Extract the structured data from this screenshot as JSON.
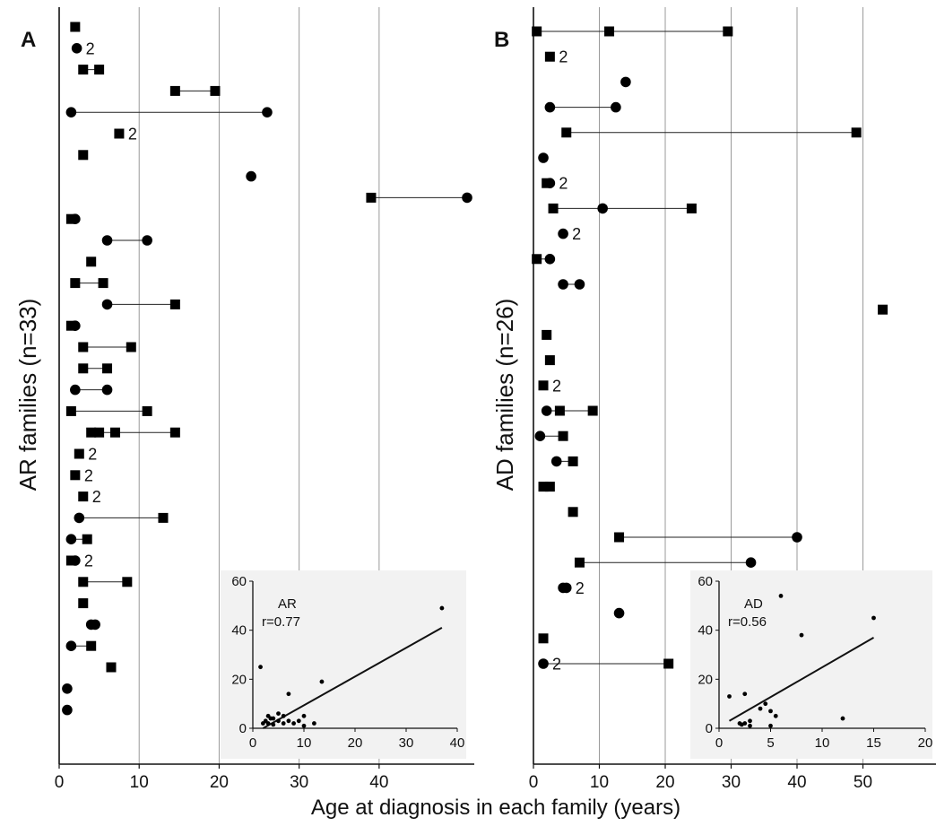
{
  "figure": {
    "xlabel": "Age at diagnosis in each family (years)"
  },
  "chart_data": [
    {
      "panel": "A",
      "type": "scatter",
      "ylabel": "AR families (n=33)",
      "xticks": [
        0,
        10,
        20,
        30,
        40
      ],
      "xlim": [
        0,
        51
      ],
      "grid_x": [
        10,
        20,
        30,
        40
      ],
      "families": [
        {
          "points": [
            {
              "s": "sq",
              "x": 2
            }
          ]
        },
        {
          "points": [
            {
              "s": "ci",
              "x": 2.2
            }
          ],
          "count": "2"
        },
        {
          "points": [
            {
              "s": "sq",
              "x": 3
            },
            {
              "s": "sq",
              "x": 5
            }
          ]
        },
        {
          "points": [
            {
              "s": "sq",
              "x": 14.5
            },
            {
              "s": "sq",
              "x": 19.5
            }
          ]
        },
        {
          "points": [
            {
              "s": "ci",
              "x": 1.5
            },
            {
              "s": "ci",
              "x": 26
            }
          ]
        },
        {
          "points": [
            {
              "s": "sq",
              "x": 7.5
            }
          ],
          "count": "2"
        },
        {
          "points": [
            {
              "s": "sq",
              "x": 3
            }
          ]
        },
        {
          "points": [
            {
              "s": "ci",
              "x": 24
            }
          ]
        },
        {
          "points": [
            {
              "s": "sq",
              "x": 39
            },
            {
              "s": "ci",
              "x": 51
            }
          ]
        },
        {
          "points": [
            {
              "s": "sq",
              "x": 1.5
            },
            {
              "s": "ci",
              "x": 2
            }
          ]
        },
        {
          "points": [
            {
              "s": "ci",
              "x": 6
            },
            {
              "s": "ci",
              "x": 11
            }
          ]
        },
        {
          "points": [
            {
              "s": "sq",
              "x": 4
            }
          ]
        },
        {
          "points": [
            {
              "s": "sq",
              "x": 2
            },
            {
              "s": "sq",
              "x": 5.5
            }
          ]
        },
        {
          "points": [
            {
              "s": "ci",
              "x": 6
            },
            {
              "s": "sq",
              "x": 14.5
            }
          ]
        },
        {
          "points": [
            {
              "s": "sq",
              "x": 1.5
            },
            {
              "s": "ci",
              "x": 2
            }
          ]
        },
        {
          "points": [
            {
              "s": "sq",
              "x": 3
            },
            {
              "s": "sq",
              "x": 9
            }
          ]
        },
        {
          "points": [
            {
              "s": "sq",
              "x": 3
            },
            {
              "s": "sq",
              "x": 6
            }
          ]
        },
        {
          "points": [
            {
              "s": "ci",
              "x": 2
            },
            {
              "s": "ci",
              "x": 6
            }
          ]
        },
        {
          "points": [
            {
              "s": "sq",
              "x": 1.5
            },
            {
              "s": "sq",
              "x": 11
            }
          ]
        },
        {
          "points": [
            {
              "s": "sq",
              "x": 4
            },
            {
              "s": "sq",
              "x": 5
            },
            {
              "s": "sq",
              "x": 7
            },
            {
              "s": "sq",
              "x": 14.5
            }
          ]
        },
        {
          "points": [
            {
              "s": "sq",
              "x": 2.5
            }
          ],
          "count": "2"
        },
        {
          "points": [
            {
              "s": "sq",
              "x": 2
            }
          ],
          "count": "2"
        },
        {
          "points": [
            {
              "s": "sq",
              "x": 3
            }
          ],
          "count": "2"
        },
        {
          "points": [
            {
              "s": "ci",
              "x": 2.5
            },
            {
              "s": "sq",
              "x": 13
            }
          ]
        },
        {
          "points": [
            {
              "s": "ci",
              "x": 1.5
            },
            {
              "s": "sq",
              "x": 3.5
            }
          ]
        },
        {
          "points": [
            {
              "s": "sq",
              "x": 1.5
            },
            {
              "s": "ci",
              "x": 2
            }
          ],
          "count": "2"
        },
        {
          "points": [
            {
              "s": "sq",
              "x": 3
            },
            {
              "s": "sq",
              "x": 8.5
            }
          ]
        },
        {
          "points": [
            {
              "s": "sq",
              "x": 3
            }
          ]
        },
        {
          "points": [
            {
              "s": "ci",
              "x": 4
            },
            {
              "s": "ci",
              "x": 4.5
            }
          ]
        },
        {
          "points": [
            {
              "s": "ci",
              "x": 1.5
            },
            {
              "s": "sq",
              "x": 4
            }
          ]
        },
        {
          "points": [
            {
              "s": "sq",
              "x": 6.5
            }
          ]
        },
        {
          "points": [
            {
              "s": "ci",
              "x": 1
            }
          ]
        },
        {
          "points": [
            {
              "s": "ci",
              "x": 1
            }
          ]
        }
      ],
      "inset": {
        "label": "AR",
        "r_text": "r=0.77",
        "xticks": [
          0,
          10,
          20,
          30,
          40
        ],
        "yticks": [
          0,
          20,
          40,
          60
        ],
        "xlim": [
          0,
          40
        ],
        "ylim": [
          0,
          60
        ],
        "fit": [
          [
            2,
            0
          ],
          [
            37,
            41
          ]
        ],
        "points": [
          [
            1.5,
            25
          ],
          [
            37,
            49
          ],
          [
            13.5,
            19
          ],
          [
            7,
            14
          ],
          [
            2,
            2
          ],
          [
            2.5,
            3
          ],
          [
            3,
            5
          ],
          [
            3,
            2
          ],
          [
            4,
            1.5
          ],
          [
            4,
            4
          ],
          [
            5,
            6
          ],
          [
            5,
            3
          ],
          [
            6,
            2
          ],
          [
            6,
            5
          ],
          [
            7,
            3
          ],
          [
            8,
            2
          ],
          [
            9,
            3
          ],
          [
            10,
            5
          ],
          [
            10,
            1
          ],
          [
            12,
            2
          ],
          [
            3.5,
            4
          ]
        ]
      }
    },
    {
      "panel": "B",
      "type": "scatter",
      "ylabel": "AD families (n=26)",
      "xticks": [
        0,
        10,
        20,
        30,
        40,
        50
      ],
      "xlim": [
        0,
        60
      ],
      "grid_x": [
        10,
        20,
        30,
        40,
        50
      ],
      "families": [
        {
          "points": [
            {
              "s": "sq",
              "x": 0.5
            },
            {
              "s": "sq",
              "x": 11.5
            },
            {
              "s": "sq",
              "x": 29.5
            }
          ]
        },
        {
          "points": [
            {
              "s": "sq",
              "x": 2.5
            }
          ],
          "count": "2"
        },
        {
          "points": [
            {
              "s": "ci",
              "x": 14
            }
          ]
        },
        {
          "points": [
            {
              "s": "ci",
              "x": 2.5
            },
            {
              "s": "ci",
              "x": 12.5
            }
          ]
        },
        {
          "points": [
            {
              "s": "sq",
              "x": 5
            },
            {
              "s": "sq",
              "x": 49
            }
          ]
        },
        {
          "points": [
            {
              "s": "ci",
              "x": 1.5
            }
          ]
        },
        {
          "points": [
            {
              "s": "sq",
              "x": 2
            },
            {
              "s": "ci",
              "x": 2.5
            }
          ],
          "count": "2"
        },
        {
          "points": [
            {
              "s": "sq",
              "x": 3
            },
            {
              "s": "ci",
              "x": 10.5
            },
            {
              "s": "sq",
              "x": 24
            }
          ]
        },
        {
          "points": [
            {
              "s": "ci",
              "x": 4.5
            }
          ],
          "count": "2"
        },
        {
          "points": [
            {
              "s": "sq",
              "x": 0.5
            },
            {
              "s": "ci",
              "x": 2.5
            }
          ]
        },
        {
          "points": [
            {
              "s": "ci",
              "x": 4.5
            },
            {
              "s": "ci",
              "x": 7
            }
          ]
        },
        {
          "points": [
            {
              "s": "sq",
              "x": 53
            }
          ]
        },
        {
          "points": [
            {
              "s": "sq",
              "x": 2
            }
          ]
        },
        {
          "points": [
            {
              "s": "sq",
              "x": 2.5
            }
          ]
        },
        {
          "points": [
            {
              "s": "sq",
              "x": 1.5
            }
          ],
          "count": "2"
        },
        {
          "points": [
            {
              "s": "ci",
              "x": 2
            },
            {
              "s": "sq",
              "x": 4
            },
            {
              "s": "sq",
              "x": 9
            }
          ]
        },
        {
          "points": [
            {
              "s": "ci",
              "x": 1
            },
            {
              "s": "sq",
              "x": 4.5
            }
          ]
        },
        {
          "points": [
            {
              "s": "ci",
              "x": 3.5
            },
            {
              "s": "sq",
              "x": 6
            }
          ]
        },
        {
          "points": [
            {
              "s": "sq",
              "x": 1.5
            },
            {
              "s": "sq",
              "x": 2.5
            }
          ]
        },
        {
          "points": [
            {
              "s": "sq",
              "x": 6
            }
          ]
        },
        {
          "points": [
            {
              "s": "sq",
              "x": 13
            },
            {
              "s": "ci",
              "x": 40
            }
          ]
        },
        {
          "points": [
            {
              "s": "sq",
              "x": 7
            },
            {
              "s": "ci",
              "x": 33
            }
          ]
        },
        {
          "points": [
            {
              "s": "ci",
              "x": 4.5
            },
            {
              "s": "ci",
              "x": 5
            }
          ],
          "count": "2"
        },
        {
          "points": [
            {
              "s": "ci",
              "x": 13
            }
          ]
        },
        {
          "points": [
            {
              "s": "sq",
              "x": 1.5
            }
          ]
        },
        {
          "points": [
            {
              "s": "ci",
              "x": 1.5
            },
            {
              "s": "sq",
              "x": 20.5
            }
          ],
          "count": "2",
          "count_left": true
        }
      ],
      "inset": {
        "label": "AD",
        "r_text": "r=0.56",
        "xticks": [
          0,
          5,
          10,
          15,
          20
        ],
        "yticks": [
          0,
          20,
          40,
          60
        ],
        "xlim": [
          0,
          20
        ],
        "ylim": [
          0,
          60
        ],
        "fit": [
          [
            1,
            3
          ],
          [
            15,
            37
          ]
        ],
        "points": [
          [
            6,
            54
          ],
          [
            15,
            45
          ],
          [
            8,
            38
          ],
          [
            12,
            4
          ],
          [
            1,
            13
          ],
          [
            2.5,
            14
          ],
          [
            2,
            2
          ],
          [
            2.2,
            1.5
          ],
          [
            2.5,
            2
          ],
          [
            3,
            1
          ],
          [
            3,
            3
          ],
          [
            4,
            8
          ],
          [
            4.5,
            10
          ],
          [
            5,
            7
          ],
          [
            5.5,
            5
          ],
          [
            5,
            1
          ]
        ]
      }
    }
  ]
}
